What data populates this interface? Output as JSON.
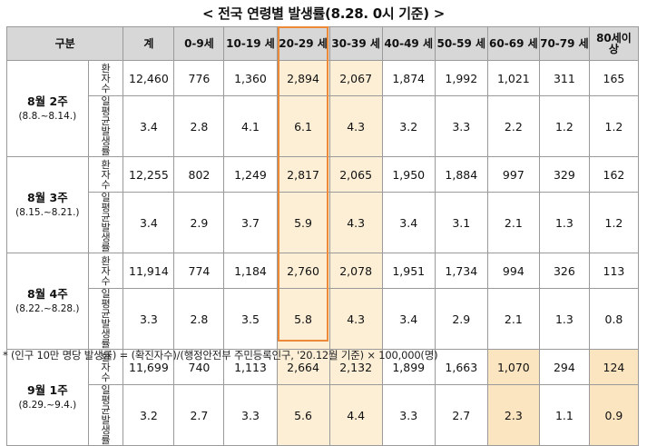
{
  "title": "< 전국 연령별 발생률(8.28. 0시 기준) >",
  "headers": {
    "category": "구분",
    "total": "계",
    "ages": [
      "0-9세",
      "10-19 세",
      "20-29 세",
      "30-39 세",
      "40-49 세",
      "50-59 세",
      "60-69 세",
      "70-79 세",
      "80세이 상"
    ]
  },
  "metrics": {
    "patients": "환자 수",
    "avg_rate": "일평 균발 생률"
  },
  "weeks": [
    {
      "label": "8월 2주",
      "range": "(8.8.~8.14.)",
      "patients": [
        "12,460",
        "776",
        "1,360",
        "2,894",
        "2,067",
        "1,874",
        "1,992",
        "1,021",
        "311",
        "165"
      ],
      "avg_rate": [
        "3.4",
        "2.8",
        "4.1",
        "6.1",
        "4.3",
        "3.2",
        "3.3",
        "2.2",
        "1.2",
        "1.2"
      ]
    },
    {
      "label": "8월 3주",
      "range": "(8.15.~8.21.)",
      "patients": [
        "12,255",
        "802",
        "1,249",
        "2,817",
        "2,065",
        "1,950",
        "1,884",
        "997",
        "329",
        "162"
      ],
      "avg_rate": [
        "3.4",
        "2.9",
        "3.7",
        "5.9",
        "4.3",
        "3.4",
        "3.1",
        "2.1",
        "1.3",
        "1.2"
      ]
    },
    {
      "label": "8월 4주",
      "range": "(8.22.~8.28.)",
      "patients": [
        "11,914",
        "774",
        "1,184",
        "2,760",
        "2,078",
        "1,951",
        "1,734",
        "994",
        "326",
        "113"
      ],
      "avg_rate": [
        "3.3",
        "2.8",
        "3.5",
        "5.8",
        "4.3",
        "3.4",
        "2.9",
        "2.1",
        "1.3",
        "0.8"
      ]
    },
    {
      "label": "9월 1주",
      "range": "(8.29.~9.4.)",
      "patients": [
        "11,699",
        "740",
        "1,113",
        "2,664",
        "2,132",
        "1,899",
        "1,663",
        "1,070",
        "294",
        "124"
      ],
      "avg_rate": [
        "3.2",
        "2.7",
        "3.3",
        "5.6",
        "4.4",
        "3.3",
        "2.7",
        "2.3",
        "1.1",
        "0.9"
      ]
    }
  ],
  "footnote": "* (인구 10만 명당 발생률) = (확진자수)/(행정안전부 주민등록인구, '20.12월 기준) × 100,000(명)",
  "colors": {
    "highlight": "#fcefd6",
    "frame": "#ec8a3a",
    "header_bg": "#d7d7d7"
  }
}
